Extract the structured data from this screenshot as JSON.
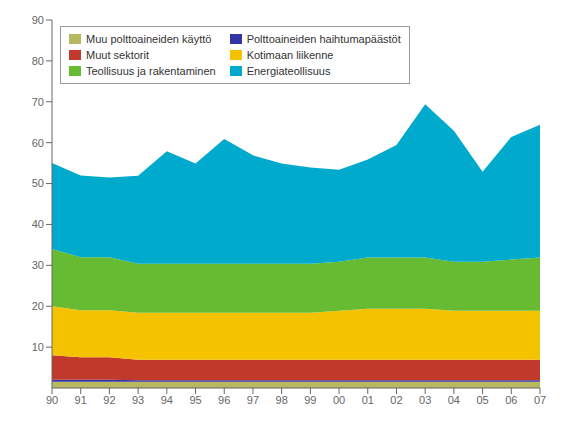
{
  "chart_data": {
    "type": "area",
    "stacked": true,
    "categories": [
      "90",
      "91",
      "92",
      "93",
      "94",
      "95",
      "96",
      "97",
      "98",
      "99",
      "00",
      "01",
      "02",
      "03",
      "04",
      "05",
      "06",
      "07"
    ],
    "series": [
      {
        "name": "Muu polttoaineiden käyttö",
        "color": "#b8b860",
        "values": [
          1.5,
          1.5,
          1.5,
          1.5,
          1.5,
          1.5,
          1.5,
          1.5,
          1.5,
          1.5,
          1.5,
          1.5,
          1.5,
          1.5,
          1.5,
          1.5,
          1.5,
          1.5
        ]
      },
      {
        "name": "Polttoaineiden haihtumapäästöt",
        "color": "#3333aa",
        "values": [
          0.5,
          0.5,
          0.5,
          0.4,
          0.4,
          0.4,
          0.4,
          0.4,
          0.4,
          0.4,
          0.4,
          0.4,
          0.4,
          0.4,
          0.4,
          0.4,
          0.4,
          0.4
        ]
      },
      {
        "name": "Muut sektorit",
        "color": "#c0392b",
        "values": [
          6.0,
          5.5,
          5.5,
          5.0,
          5.0,
          5.0,
          5.0,
          5.0,
          5.0,
          5.0,
          5.0,
          5.0,
          5.0,
          5.0,
          5.0,
          5.0,
          5.0,
          5.0
        ]
      },
      {
        "name": "Kotimaan liikenne",
        "color": "#f5c200",
        "values": [
          12.0,
          11.5,
          11.5,
          11.5,
          11.5,
          11.5,
          11.5,
          11.5,
          11.5,
          11.5,
          12.0,
          12.5,
          12.5,
          12.5,
          12.0,
          12.0,
          12.0,
          12.0
        ]
      },
      {
        "name": "Teollisuus ja rakentaminen",
        "color": "#66bb33",
        "values": [
          14.0,
          13.0,
          13.0,
          12.0,
          12.0,
          12.0,
          12.0,
          12.0,
          12.0,
          12.0,
          12.0,
          12.5,
          12.5,
          12.5,
          12.0,
          12.0,
          12.5,
          13.0
        ]
      },
      {
        "name": "Energiateollisuus",
        "color": "#00aacc",
        "values": [
          21.0,
          20.0,
          19.5,
          21.5,
          27.5,
          24.5,
          30.5,
          26.5,
          24.5,
          23.5,
          22.5,
          24.0,
          27.5,
          37.5,
          32.0,
          22.0,
          30.0,
          32.5
        ]
      }
    ],
    "ylim": [
      0,
      90
    ],
    "yticks": [
      10,
      20,
      30,
      40,
      50,
      60,
      70,
      80,
      90
    ],
    "grid": false,
    "legend": "upper left"
  }
}
